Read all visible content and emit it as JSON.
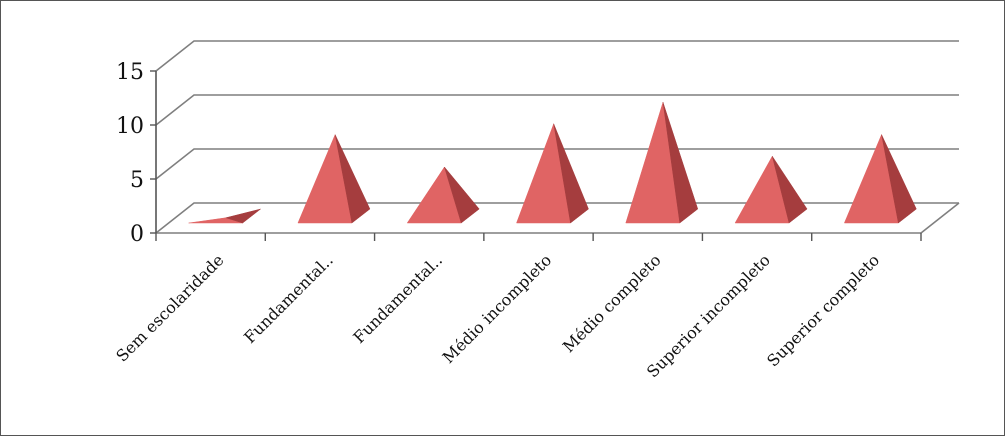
{
  "chart_data": {
    "type": "bar",
    "style": "3d-pyramid",
    "categories": [
      "Sem escolaridade",
      "Fundamental..",
      "Fundamental..",
      "Médio incompleto",
      "Médio completo",
      "Superior incompleto",
      "Superior completo"
    ],
    "values": [
      0.3,
      8,
      5,
      9,
      11,
      6,
      8
    ],
    "ylim": [
      0,
      15
    ],
    "yticks": [
      "0",
      "5",
      "10",
      "15"
    ],
    "grid": true,
    "legend": "none",
    "colors": {
      "pyramid_light": "#e06464",
      "pyramid_dark": "#a53d3e",
      "grid": "#7f7f7f",
      "axis": "#555555"
    }
  }
}
